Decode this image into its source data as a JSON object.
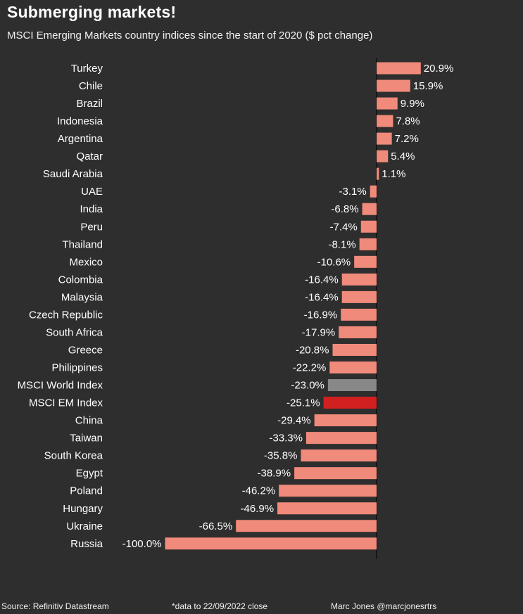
{
  "title": "Submerging markets!",
  "subtitle": "MSCI Emerging Markets country indices since the start of 2020 ($ pct change)",
  "footer": {
    "source": "Source: Refinitiv Datastream",
    "note": "*data to 22/09/2022 close",
    "credit": "Marc Jones @marcjonesrtrs"
  },
  "colors": {
    "background": "#2e2e2f",
    "bar": "#f08a7a",
    "world_index": "#888888",
    "em_index": "#d21f1f",
    "text": "#ffffff",
    "axis": "#000000"
  },
  "chart_data": {
    "type": "bar",
    "orientation": "horizontal",
    "title": "Submerging markets!",
    "subtitle": "MSCI Emerging Markets country indices since the start of 2020 ($ pct change)",
    "xlabel": "",
    "ylabel": "",
    "xlim": [
      -100,
      21
    ],
    "grid": false,
    "categories": [
      "Turkey",
      "Chile",
      "Brazil",
      "Indonesia",
      "Argentina",
      "Qatar",
      "Saudi Arabia",
      "UAE",
      "India",
      "Peru",
      "Thailand",
      "Mexico",
      "Colombia",
      "Malaysia",
      "Czech Republic",
      "South Africa",
      "Greece",
      "Philippines",
      "MSCI World Index",
      "MSCI EM Index",
      "China",
      "Taiwan",
      "South Korea",
      "Egypt",
      "Poland",
      "Hungary",
      "Ukraine",
      "Russia"
    ],
    "values": [
      20.9,
      15.9,
      9.9,
      7.8,
      7.2,
      5.4,
      1.1,
      -3.1,
      -6.8,
      -7.4,
      -8.1,
      -10.6,
      -16.4,
      -16.4,
      -16.9,
      -17.9,
      -20.8,
      -22.2,
      -23.0,
      -25.1,
      -29.4,
      -33.3,
      -35.8,
      -38.9,
      -46.2,
      -46.9,
      -66.5,
      -100.0
    ],
    "value_labels": [
      "20.9%",
      "15.9%",
      "9.9%",
      "7.8%",
      "7.2%",
      "5.4%",
      "1.1%",
      "-3.1%",
      "-6.8%",
      "-7.4%",
      "-8.1%",
      "-10.6%",
      "-16.4%",
      "-16.4%",
      "-16.9%",
      "-17.9%",
      "-20.8%",
      "-22.2%",
      "-23.0%",
      "-25.1%",
      "-29.4%",
      "-33.3%",
      "-35.8%",
      "-38.9%",
      "-46.2%",
      "-46.9%",
      "-66.5%",
      "-100.0%"
    ],
    "highlight": {
      "MSCI World Index": "world_index",
      "MSCI EM Index": "em_index"
    }
  }
}
